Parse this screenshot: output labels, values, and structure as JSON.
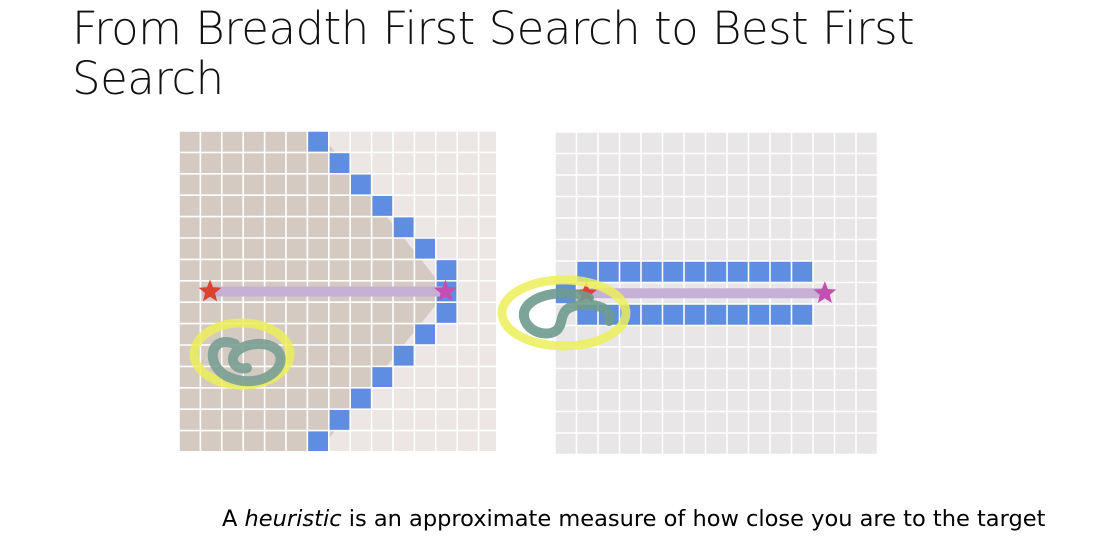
{
  "slide": {
    "title": "From Breadth First Search to Best First Search",
    "caption_prefix": "A ",
    "caption_emphasis": "heuristic",
    "caption_suffix": " is an approximate measure of how close you are to the target"
  },
  "diagrams": [
    {
      "name": "breadth-first-search",
      "explored_color": "#d4cac1",
      "unexplored_color": "#ece7e5",
      "frontier_color": "#5f8ee1",
      "path_color": "#c6b0d6",
      "start_color": "#d9432f",
      "goal_color": "#c34fb0",
      "annotation": "yellow circled scribble"
    },
    {
      "name": "best-first-search",
      "explored_color": "#e8e6e6",
      "unexplored_color": "#e8e6e6",
      "frontier_color": "#5f8ee1",
      "path_color": "#c6b0d6",
      "start_color": "#d9432f",
      "goal_color": "#c34fb0",
      "annotation": "yellow circled scribble"
    }
  ]
}
